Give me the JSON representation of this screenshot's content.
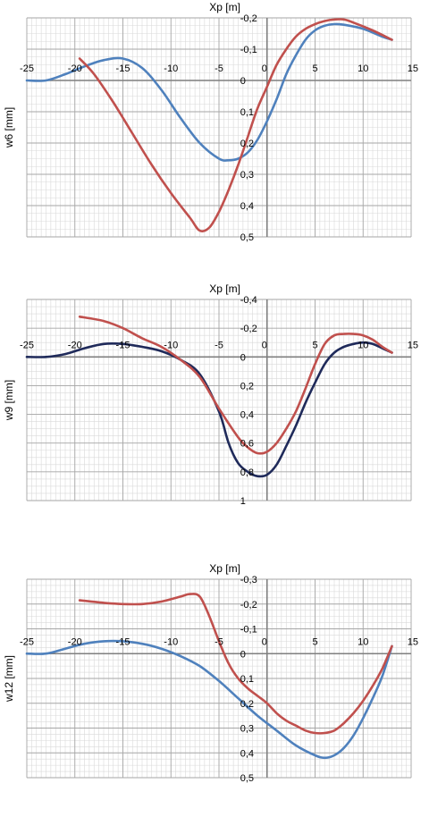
{
  "chart_data": [
    {
      "type": "line",
      "title": "",
      "xlabel": "Xp  [m]",
      "ylabel": "w6  [mm]",
      "xlim": [
        -25,
        15
      ],
      "ylim": [
        -0.2,
        0.5
      ],
      "y_reversed": true,
      "grid": true,
      "x_ticks": [
        -25,
        -20,
        -15,
        -10,
        -5,
        0,
        5,
        10,
        15
      ],
      "x_tick_labels": [
        "-25",
        "-20",
        "-15",
        "-10",
        "-5",
        "0",
        "5",
        "10",
        "15"
      ],
      "y_ticks": [
        -0.2,
        -0.1,
        0,
        0.1,
        0.2,
        0.3,
        0.4,
        0.5
      ],
      "y_tick_labels": [
        "-0,2",
        "-0,1",
        "0",
        "0,1",
        "0,2",
        "0,3",
        "0,4",
        "0,5"
      ],
      "series": [
        {
          "color": "#4f81bd",
          "x": [
            -25,
            -23,
            -21,
            -19,
            -17,
            -15,
            -13,
            -11,
            -9,
            -7,
            -5,
            -4,
            -3,
            -2,
            -1,
            0,
            1,
            2,
            3,
            4,
            5,
            6,
            7,
            8,
            10,
            12,
            13
          ],
          "y": [
            0,
            0,
            -0.02,
            -0.045,
            -0.065,
            -0.07,
            -0.04,
            0.03,
            0.12,
            0.2,
            0.25,
            0.255,
            0.25,
            0.23,
            0.19,
            0.13,
            0.06,
            -0.02,
            -0.08,
            -0.13,
            -0.16,
            -0.175,
            -0.18,
            -0.178,
            -0.165,
            -0.14,
            -0.13
          ]
        },
        {
          "color": "#c0504d",
          "x": [
            -19.5,
            -18,
            -16,
            -14,
            -12,
            -10,
            -8,
            -7,
            -6,
            -5,
            -4,
            -3,
            -2,
            -1,
            0,
            1,
            2,
            3,
            4,
            5,
            6,
            7,
            8,
            9,
            11,
            13
          ],
          "y": [
            -0.07,
            -0.02,
            0.07,
            0.17,
            0.27,
            0.36,
            0.44,
            0.48,
            0.47,
            0.42,
            0.35,
            0.27,
            0.18,
            0.09,
            0.02,
            -0.05,
            -0.1,
            -0.14,
            -0.165,
            -0.18,
            -0.19,
            -0.195,
            -0.195,
            -0.185,
            -0.16,
            -0.13
          ]
        }
      ]
    },
    {
      "type": "line",
      "title": "",
      "xlabel": "Xp  [m]",
      "ylabel": "w9  [mm]",
      "xlim": [
        -25,
        15
      ],
      "ylim": [
        -0.4,
        1
      ],
      "y_reversed": true,
      "grid": true,
      "x_ticks": [
        -25,
        -20,
        -15,
        -10,
        -5,
        0,
        5,
        10,
        15
      ],
      "x_tick_labels": [
        "-25",
        "-20",
        "-15",
        "-10",
        "-5",
        "0",
        "5",
        "10",
        "15"
      ],
      "y_ticks": [
        -0.4,
        -0.2,
        0,
        0.2,
        0.4,
        0.6,
        0.8,
        1
      ],
      "y_tick_labels": [
        "-0,4",
        "-0,2",
        "0",
        "0,2",
        "0,4",
        "0,6",
        "0,8",
        "1"
      ],
      "series": [
        {
          "color": "#1f2a5a",
          "x": [
            -25,
            -23,
            -21,
            -19,
            -17,
            -15,
            -13,
            -11,
            -9,
            -7,
            -5,
            -4,
            -3,
            -2,
            -1,
            0,
            1,
            2,
            3,
            4,
            5,
            6,
            7,
            8,
            9,
            10,
            11,
            12,
            13
          ],
          "y": [
            0,
            0,
            -0.02,
            -0.06,
            -0.09,
            -0.09,
            -0.07,
            -0.04,
            0.02,
            0.12,
            0.38,
            0.6,
            0.74,
            0.8,
            0.83,
            0.82,
            0.75,
            0.62,
            0.48,
            0.32,
            0.18,
            0.05,
            -0.03,
            -0.07,
            -0.09,
            -0.1,
            -0.09,
            -0.06,
            -0.03
          ]
        },
        {
          "color": "#c0504d",
          "x": [
            -19.5,
            -17,
            -15,
            -13,
            -11,
            -9,
            -7,
            -5,
            -3,
            -2,
            -1,
            0,
            1,
            2,
            3,
            4,
            5,
            6,
            7,
            8,
            9,
            10,
            11,
            12,
            13
          ],
          "y": [
            -0.28,
            -0.25,
            -0.2,
            -0.13,
            -0.07,
            0.02,
            0.14,
            0.36,
            0.56,
            0.63,
            0.67,
            0.66,
            0.6,
            0.5,
            0.38,
            0.22,
            0.05,
            -0.09,
            -0.15,
            -0.16,
            -0.16,
            -0.15,
            -0.12,
            -0.07,
            -0.03
          ]
        }
      ]
    },
    {
      "type": "line",
      "title": "",
      "xlabel": "Xp  [m]",
      "ylabel": "w12  [mm]",
      "xlim": [
        -25,
        15
      ],
      "ylim": [
        -0.3,
        0.5
      ],
      "y_reversed": true,
      "grid": true,
      "x_ticks": [
        -25,
        -20,
        -15,
        -10,
        -5,
        0,
        5,
        10,
        15
      ],
      "x_tick_labels": [
        "-25",
        "-20",
        "-15",
        "-10",
        "-5",
        "0",
        "5",
        "10",
        "15"
      ],
      "y_ticks": [
        -0.3,
        -0.2,
        -0.1,
        0,
        0.1,
        0.2,
        0.3,
        0.4,
        0.5
      ],
      "y_tick_labels": [
        "-0,3",
        "-0,2",
        "-0,1",
        "0",
        "0,1",
        "0,2",
        "0,3",
        "0,4",
        "0,5"
      ],
      "series": [
        {
          "color": "#4f81bd",
          "x": [
            -25,
            -23,
            -21,
            -19,
            -17,
            -15,
            -13,
            -11,
            -9,
            -7,
            -5,
            -3,
            -1,
            1,
            3,
            5,
            6,
            7,
            8,
            9,
            10,
            11,
            12,
            13
          ],
          "y": [
            0,
            0,
            -0.02,
            -0.04,
            -0.05,
            -0.05,
            -0.04,
            -0.02,
            0.01,
            0.05,
            0.11,
            0.18,
            0.25,
            0.31,
            0.37,
            0.41,
            0.42,
            0.41,
            0.38,
            0.33,
            0.26,
            0.18,
            0.09,
            -0.03
          ]
        },
        {
          "color": "#c0504d",
          "x": [
            -19.5,
            -17,
            -15,
            -13,
            -11,
            -9,
            -8,
            -7,
            -6,
            -5,
            -4,
            -3,
            -2,
            -1,
            0,
            1,
            2,
            3,
            4,
            5,
            6,
            7,
            8,
            9,
            10,
            11,
            12,
            13
          ],
          "y": [
            -0.215,
            -0.205,
            -0.2,
            -0.2,
            -0.21,
            -0.23,
            -0.24,
            -0.23,
            -0.15,
            -0.05,
            0.04,
            0.1,
            0.14,
            0.17,
            0.2,
            0.24,
            0.27,
            0.29,
            0.31,
            0.32,
            0.32,
            0.31,
            0.28,
            0.24,
            0.19,
            0.13,
            0.06,
            -0.03
          ]
        }
      ]
    }
  ]
}
